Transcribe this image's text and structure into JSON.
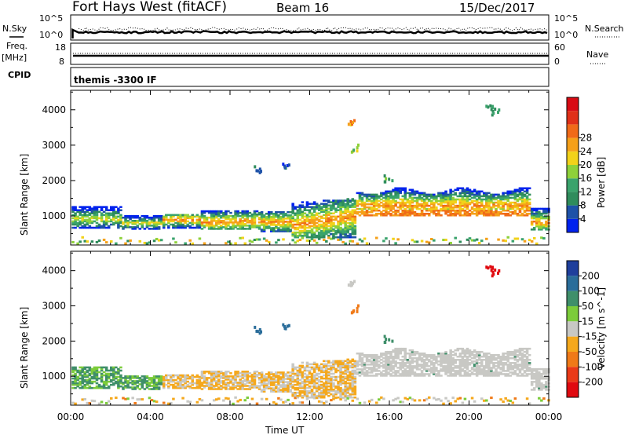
{
  "header": {
    "station": "Fort Hays West (fitACF)",
    "beam": "Beam 16",
    "date": "15/Dec/2017"
  },
  "strips": {
    "nsky_label": "N.Sky",
    "nsky_top": "10^5",
    "nsky_bottom": "10^0",
    "nsearch_label": "N.Search",
    "nsearch_top": "10^5",
    "nsearch_bottom": "10^0",
    "freq_label_1": "Freq.",
    "freq_label_2": "[MHz]",
    "freq_top": "18",
    "freq_bottom": "8",
    "nave_label": "Nave",
    "nave_top": "60",
    "nave_bottom": "0",
    "cpid_label": "CPID",
    "cpid_text": "themis -3300 IF"
  },
  "chart_data": [
    {
      "type": "heatmap",
      "title": "",
      "xlabel": "",
      "ylabel": "Slant Range [km]",
      "colorbar_label": "Power [dB]",
      "xlim": [
        "00:00",
        "24:00"
      ],
      "ylim": [
        180,
        4550
      ],
      "yticks": [
        1000,
        2000,
        3000,
        4000
      ],
      "color_ticks": [
        "4",
        "8",
        "12",
        "16",
        "20",
        "24",
        "28"
      ],
      "color_scale": [
        "#0022ee",
        "#1e52a8",
        "#2f8c5c",
        "#3aa36c",
        "#8ed13a",
        "#f2d21a",
        "#f5a019",
        "#f06a18",
        "#e03018",
        "#d80b14"
      ],
      "approx_features": [
        {
          "t_start_h": 0.0,
          "t_end_h": 14.3,
          "range_km": [
            600,
            1300
          ],
          "peak_db": 28
        },
        {
          "t_start_h": 14.3,
          "t_end_h": 22.8,
          "range_km": [
            900,
            1900
          ],
          "peak_db": 30
        }
      ]
    },
    {
      "type": "heatmap",
      "title": "",
      "xlabel": "Time UT",
      "ylabel": "Slant Range [km]",
      "colorbar_label": "Velocity [m s^-1]",
      "xlim": [
        "00:00",
        "24:00"
      ],
      "ylim": [
        180,
        4550
      ],
      "yticks": [
        1000,
        2000,
        3000,
        4000
      ],
      "xticks": [
        "00:00",
        "04:00",
        "08:00",
        "12:00",
        "16:00",
        "20:00",
        "00:00"
      ],
      "color_ticks": [
        "200",
        "100",
        "50",
        "15",
        "-15",
        "-50",
        "-100",
        "-200"
      ],
      "color_scale": [
        "#1f3f9c",
        "#2a6d9a",
        "#3f8f6a",
        "#7ccc3a",
        "#c8c8c4",
        "#f5a81c",
        "#f07a18",
        "#ea3a18",
        "#e00a10"
      ],
      "approx_features": [
        {
          "t_start_h": 5.0,
          "t_end_h": 14.0,
          "range_km": [
            650,
            1300
          ],
          "velocity": -40
        },
        {
          "t_start_h": 14.3,
          "t_end_h": 22.8,
          "range_km": [
            900,
            1900
          ],
          "velocity": 0
        }
      ]
    }
  ]
}
